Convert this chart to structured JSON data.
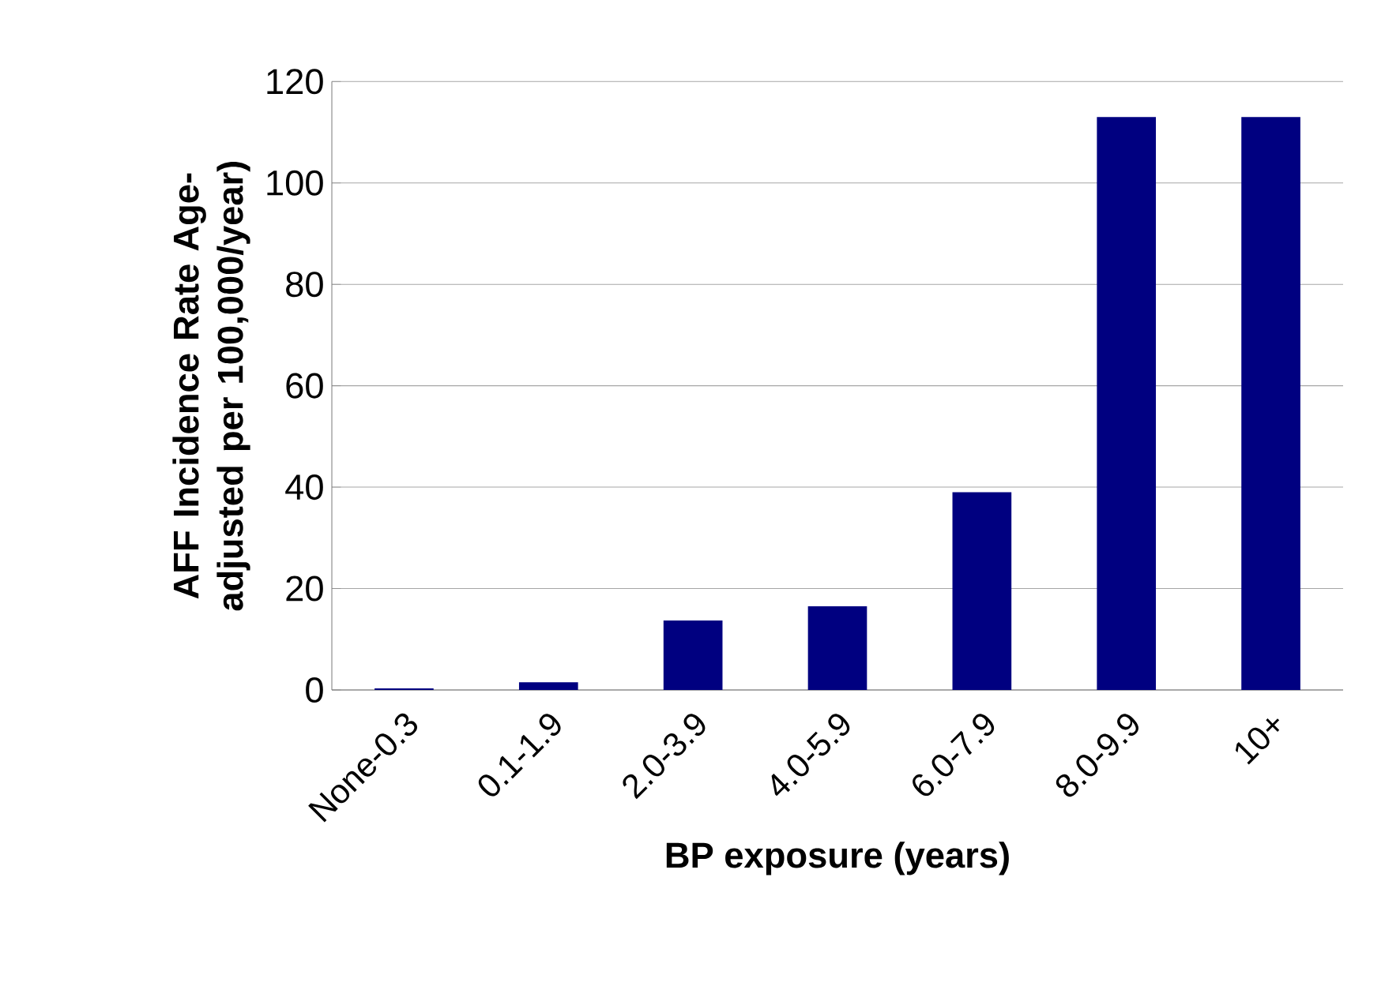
{
  "chart_data": {
    "type": "bar",
    "xlabel": "BP exposure (years)",
    "ylabel": "AFF Incidence Rate Age-adjusted per 100,000/year)",
    "categories": [
      "None-0.3",
      "0.1-1.9",
      "2.0-3.9",
      "4.0-5.9",
      "6.0-7.9",
      "8.0-9.9",
      "10+"
    ],
    "values": [
      0.3,
      1.5,
      13.7,
      16.5,
      39,
      113,
      113
    ],
    "color": "#000080",
    "ylim": [
      0,
      120
    ],
    "yticks": [
      0,
      20,
      40,
      60,
      80,
      100,
      120
    ],
    "grid": "y"
  }
}
